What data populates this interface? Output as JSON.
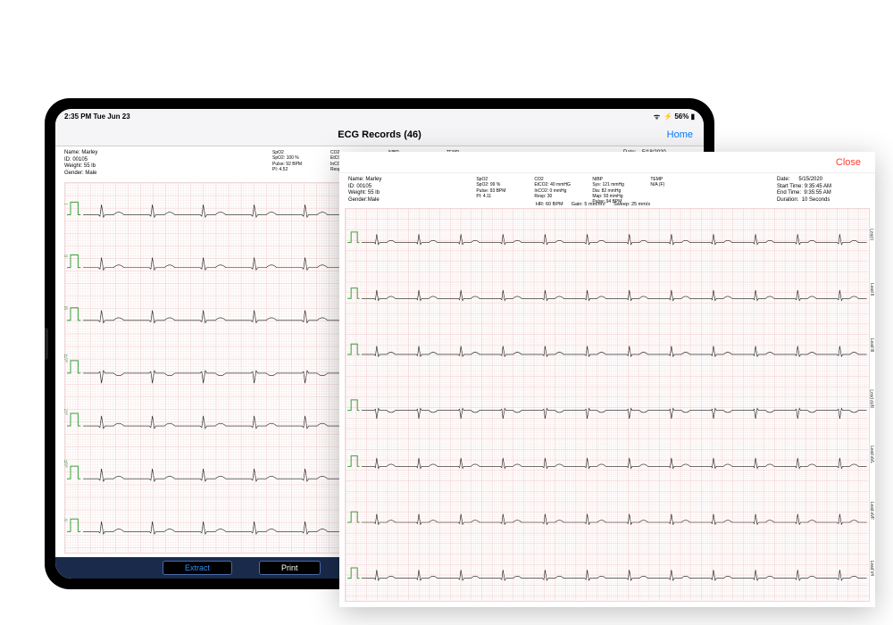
{
  "colors": {
    "grid_minor": "#f7e6e6",
    "grid_major": "#f0cccc",
    "trace": "#1a1a1a",
    "cal_pulse": "#3aa03a",
    "ios_blue": "#007aff",
    "ios_red": "#ff3b30",
    "bottombar_bg": "#1a2a4a"
  },
  "ipad": {
    "status": {
      "time": "2:35 PM  Tue Jun 23",
      "battery": "56%",
      "wifi": "wifi-icon"
    },
    "nav": {
      "title": "ECG Records (46)",
      "right": "Home"
    },
    "patient": {
      "name_label": "Name:",
      "name": "Marley",
      "id_label": "ID:",
      "id": "00105",
      "weight_label": "Weight:",
      "weight": "55 lb",
      "gender_label": "Gender:",
      "gender": "Male"
    },
    "spo2": {
      "head": "SpO2",
      "l1": "SpO2: 100 %",
      "l2": "Pulse: 92 BPM",
      "l3": "PI:  4.52"
    },
    "co2": {
      "head": "CO2",
      "l1": "EtCO2:  39 mmHG",
      "l2": "InCO2:  0 mmHg",
      "l3": "Resp: 31"
    },
    "nibp": {
      "head": "NIBP",
      "l1": "Sys: 101 mmHg",
      "l2": "Dia:  80 mmHg",
      "l3": "Map:  91 BPM"
    },
    "temp": {
      "head": "TEMP",
      "l1": "N/A (F)"
    },
    "datetime": {
      "date_label": "Date:",
      "date": "5/18/2020",
      "start_label": "Start Time:",
      "start": "1:16:11 PM"
    },
    "settings": {
      "hr": "HR:  60 BPM",
      "gain": "Gain:    5 mm/mV"
    },
    "leads": [
      "I",
      "II",
      "III",
      "aVR",
      "aVL",
      "aVF",
      "V"
    ],
    "bottom": {
      "extract": "Extract",
      "print": "Print"
    }
  },
  "sheet": {
    "close": "Close",
    "patient": {
      "name_label": "Name:",
      "name": "Marley",
      "id_label": "ID:",
      "id": "00105",
      "weight_label": "Weight:",
      "weight": "55 lb",
      "gender_label": "Gender:",
      "gender": "Male"
    },
    "spo2": {
      "head": "SpO2",
      "l1": "SpO2: 99 %",
      "l2": "Pulse: 93 BPM",
      "l3": "PI:  4.11"
    },
    "co2": {
      "head": "CO2",
      "l1": "EtCO2:  40 mmHG",
      "l2": "InCO2:  0 mmHg",
      "l3": "Resp: 30"
    },
    "nibp": {
      "head": "NIBP",
      "l1": "Sys: 121 mmHg",
      "l2": "Dia:  82 mmHg",
      "l3": "Map:  93 mmHg",
      "l4": "Pulse: 94 BPM"
    },
    "temp": {
      "head": "TEMP",
      "l1": "N/A (F)"
    },
    "datetime": {
      "date_label": "Date:",
      "date": "5/15/2020",
      "start_label": "Start Time:",
      "start": "9:35:45 AM",
      "end_label": "End Time:",
      "end": "9:35:55 AM",
      "dur_label": "Duration:",
      "dur": "10 Seconds"
    },
    "settings": {
      "hr": "HR:  60 BPM",
      "gain": "Gain:    5 mm/mV",
      "sweep": "Sweep:    25 mm/s"
    },
    "leads": [
      "Lead I",
      "Lead II",
      "Lead III",
      "Lead aVR",
      "Lead aVL",
      "Lead aVF",
      "Lead V4"
    ]
  },
  "ecg_style": {
    "minor_mm": 1,
    "major_mm": 5,
    "trace_width": 0.6,
    "cal_width": 1.0,
    "beats": 12,
    "qrs_amp_mm": 8,
    "t_amp_mm": 2
  }
}
